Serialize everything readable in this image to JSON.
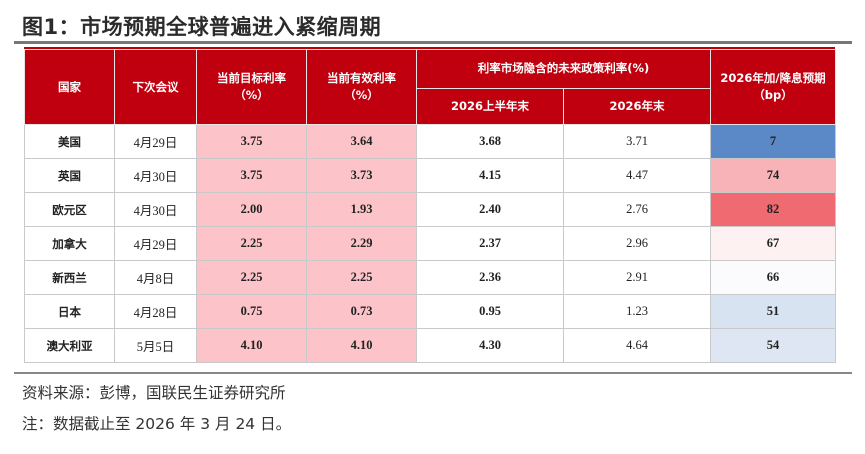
{
  "title": "图1：市场预期全球普遍进入紧缩周期",
  "table": {
    "headers": {
      "country": "国家",
      "next_meeting": "下次会议",
      "target_rate": "当前目标利率\n（%）",
      "effective_rate": "当前有效利率\n（%）",
      "implied_rate_group": "利率市场隐含的未来政策利率(%)",
      "h1_end": "2026上半年末",
      "y_end": "2026年末",
      "bp_forecast": "2026年加/降息预期\n（bp）"
    },
    "rows": [
      {
        "country": "美国",
        "meeting": "4月29日",
        "target": "3.75",
        "effective": "3.64",
        "h1": "3.68",
        "ye": "3.71",
        "bp": "7",
        "bp_color": "#5b89c7"
      },
      {
        "country": "英国",
        "meeting": "4月30日",
        "target": "3.75",
        "effective": "3.73",
        "h1": "4.15",
        "ye": "4.47",
        "bp": "74",
        "bp_color": "#f7b3b7"
      },
      {
        "country": "欧元区",
        "meeting": "4月30日",
        "target": "2.00",
        "effective": "1.93",
        "h1": "2.40",
        "ye": "2.76",
        "bp": "82",
        "bp_color": "#f06a72"
      },
      {
        "country": "加拿大",
        "meeting": "4月29日",
        "target": "2.25",
        "effective": "2.29",
        "h1": "2.37",
        "ye": "2.96",
        "bp": "67",
        "bp_color": "#fdf1f2"
      },
      {
        "country": "新西兰",
        "meeting": "4月8日",
        "target": "2.25",
        "effective": "2.25",
        "h1": "2.36",
        "ye": "2.91",
        "bp": "66",
        "bp_color": "#fbfbfd"
      },
      {
        "country": "日本",
        "meeting": "4月28日",
        "target": "0.75",
        "effective": "0.73",
        "h1": "0.95",
        "ye": "1.23",
        "bp": "51",
        "bp_color": "#d8e3f1"
      },
      {
        "country": "澳大利亚",
        "meeting": "5月5日",
        "target": "4.10",
        "effective": "4.10",
        "h1": "4.30",
        "ye": "4.64",
        "bp": "54",
        "bp_color": "#dde6f2"
      }
    ],
    "colors": {
      "header_bg": "#c0000f",
      "pink_cell": "#fcc4c9"
    }
  },
  "source": "资料来源：彭博，国联民生证券研究所",
  "note": "注：数据截止至 2026 年 3 月 24 日。"
}
